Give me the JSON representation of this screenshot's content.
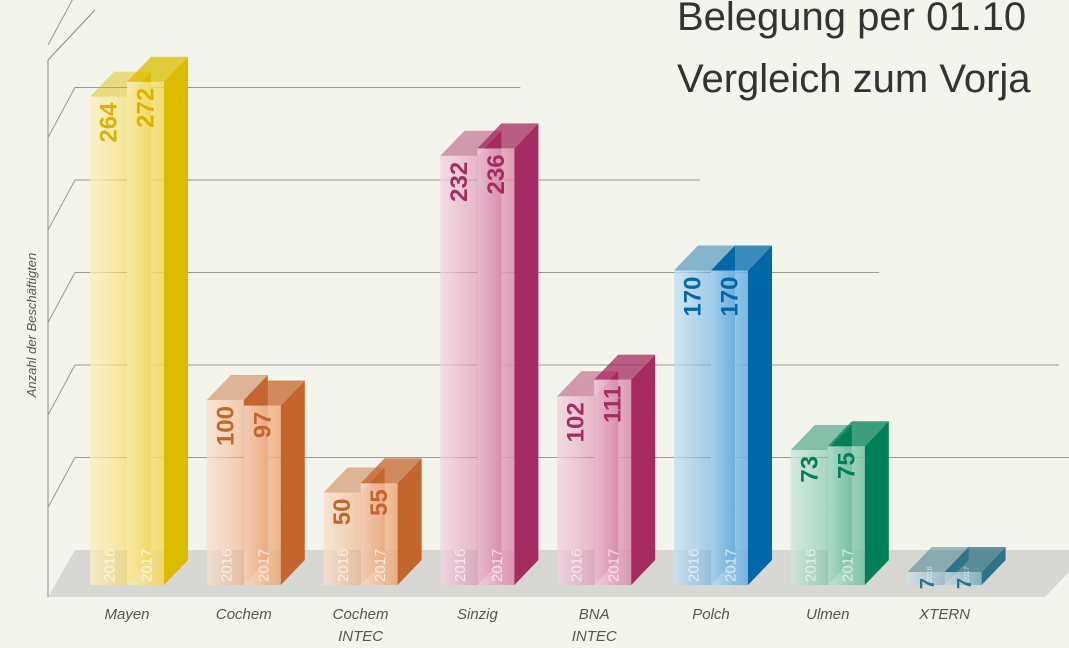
{
  "chart_data": {
    "type": "bar3d",
    "title": "Belegung per 01.10",
    "subtitle": "Vergleich zum Vorja",
    "y_label": "Anzahl der Beschäftigten",
    "categories": [
      "Mayen",
      "Cochem",
      "Cochem INTEC",
      "Sinzig",
      "BNA INTEC",
      "Polch",
      "Ulmen",
      "XTERN"
    ],
    "colors": [
      "#f2cf3c",
      "#ea9a62",
      "#ea9a62",
      "#d6779e",
      "#d6779e",
      "#4a9fdc",
      "#58b591",
      "#5f9fb0"
    ],
    "side_colors": [
      "#dcbc00",
      "#c5652e",
      "#c5652e",
      "#a62b60",
      "#a62b60",
      "#0067a9",
      "#007f58",
      "#2e7486"
    ],
    "label_colors": [
      "#d8b400",
      "#c5652e",
      "#c5652e",
      "#a62b60",
      "#a62b60",
      "#0067a9",
      "#007f58",
      "#2e7486"
    ],
    "series": [
      {
        "name": "2016",
        "values": [
          264,
          100,
          50,
          232,
          102,
          170,
          73,
          7
        ]
      },
      {
        "name": "2017",
        "values": [
          272,
          97,
          55,
          236,
          111,
          170,
          75,
          7
        ]
      }
    ],
    "ylim": [
      0,
      300
    ],
    "yticks": [
      0,
      50,
      100,
      150,
      200,
      250,
      300
    ],
    "grid": true
  }
}
